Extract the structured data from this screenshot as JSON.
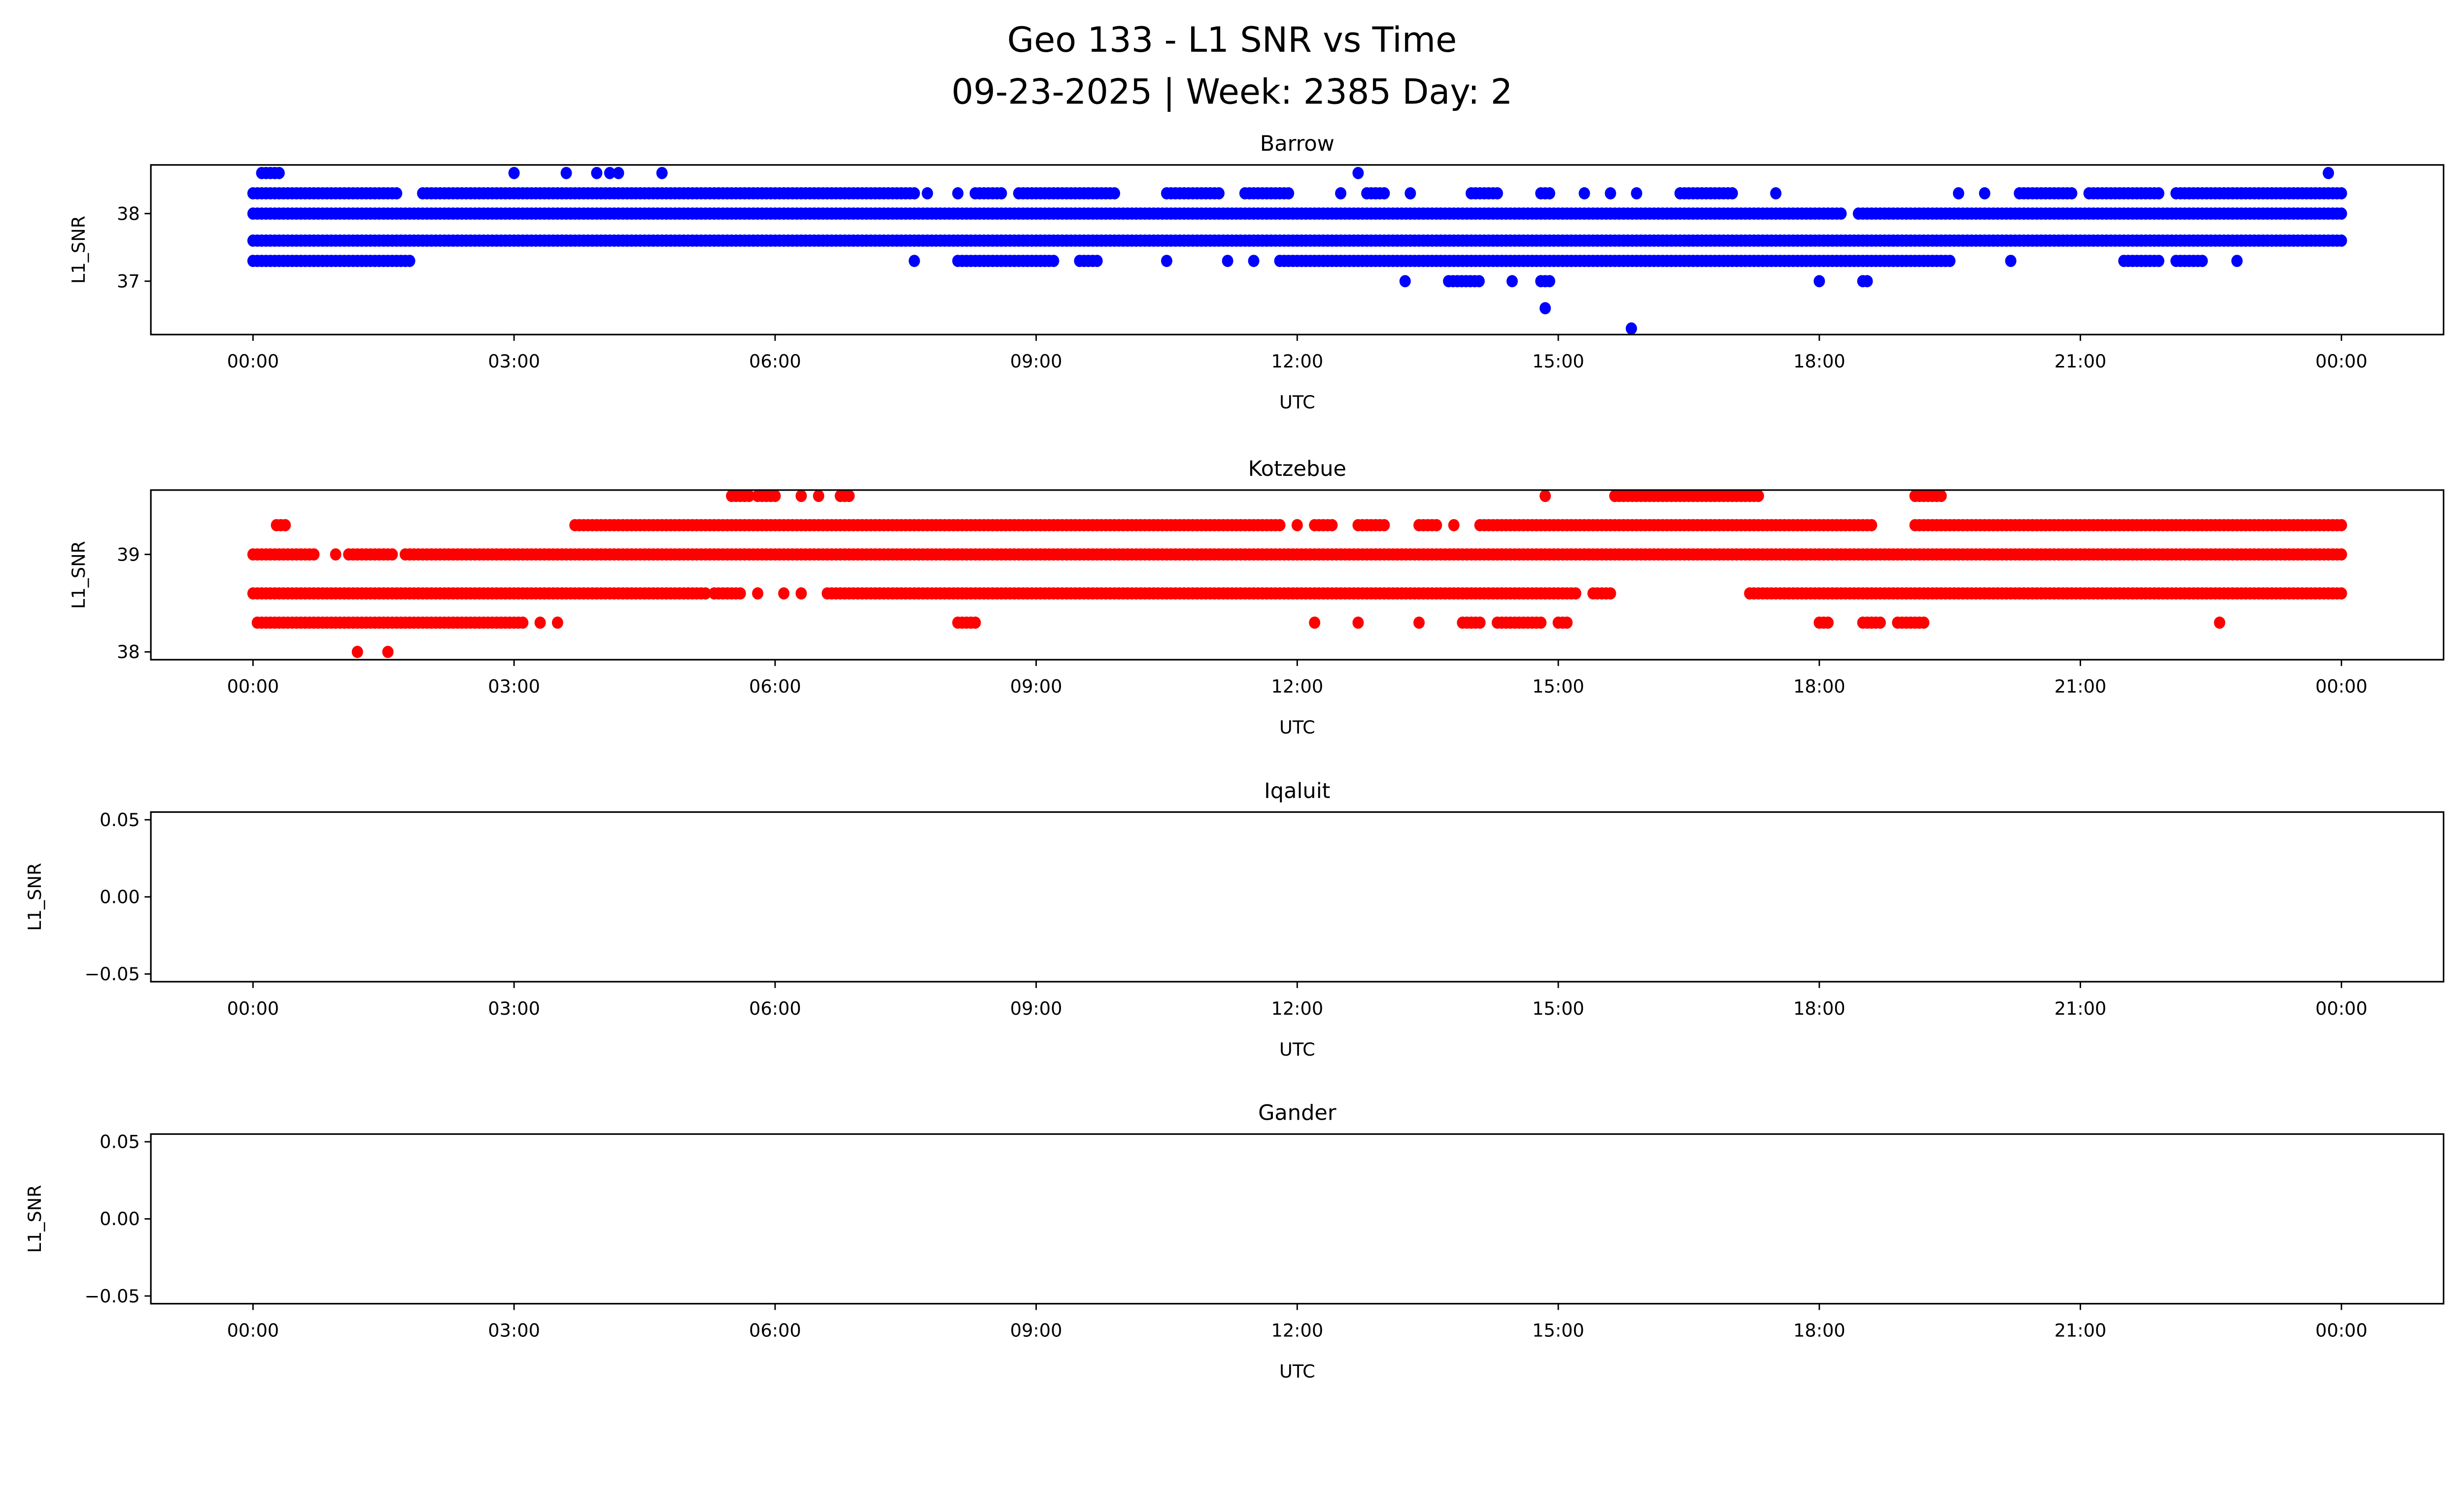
{
  "title_line1": "Geo 133 - L1 SNR vs Time",
  "title_line2": "09-23-2025 | Week: 2385 Day: 2",
  "chart_data": [
    {
      "type": "scatter",
      "title": "Barrow",
      "xlabel": "UTC",
      "ylabel": "L1_SNR",
      "color": "#0000ff",
      "xlim_hours": [
        -1.2,
        25.2
      ],
      "xticks": [
        "00:00",
        "03:00",
        "06:00",
        "09:00",
        "12:00",
        "15:00",
        "18:00",
        "21:00",
        "00:00"
      ],
      "ylim": [
        36.21,
        38.72
      ],
      "yticks": [
        37,
        38
      ],
      "ytick_labels": [
        "37",
        "38"
      ],
      "series": [
        {
          "y": 38.6,
          "runs": [
            [
              0.1,
              0.3
            ]
          ],
          "points": [
            3.0,
            3.6,
            3.95,
            4.1,
            4.2,
            4.7,
            12.7,
            23.85
          ]
        },
        {
          "y": 38.3,
          "runs": [
            [
              0,
              1.6
            ],
            [
              1.95,
              7.6
            ],
            [
              8.3,
              8.6
            ],
            [
              8.8,
              9.9
            ],
            [
              10.5,
              11.1
            ],
            [
              11.4,
              11.9
            ],
            [
              12.8,
              13.0
            ],
            [
              14.0,
              14.3
            ],
            [
              14.8,
              14.9
            ],
            [
              16.4,
              17.0
            ],
            [
              20.3,
              20.9
            ],
            [
              21.1,
              21.9
            ],
            [
              22.1,
              24
            ]
          ],
          "points": [
            1.65,
            7.75,
            8.1,
            12.5,
            13.3,
            15.3,
            15.6,
            15.9,
            17.5,
            19.6,
            19.9
          ]
        },
        {
          "y": 38.0,
          "runs": [
            [
              0,
              18.25
            ],
            [
              18.45,
              24
            ]
          ],
          "points": []
        },
        {
          "y": 37.6,
          "runs": [
            [
              0,
              24
            ]
          ],
          "points": []
        },
        {
          "y": 37.3,
          "runs": [
            [
              0,
              1.8
            ],
            [
              8.1,
              9.2
            ],
            [
              9.5,
              9.7
            ],
            [
              11.8,
              19.5
            ],
            [
              21.5,
              21.9
            ],
            [
              22.1,
              22.4
            ]
          ],
          "points": [
            7.6,
            10.5,
            11.2,
            11.5,
            20.2,
            22.8
          ]
        },
        {
          "y": 37.0,
          "runs": [
            [
              13.74,
              14.12
            ],
            [
              14.8,
              14.9
            ],
            [
              18.5,
              18.55
            ]
          ],
          "points": [
            13.24,
            14.47,
            18.0
          ]
        },
        {
          "y": 36.6,
          "runs": [],
          "points": [
            14.85
          ]
        },
        {
          "y": 36.3,
          "runs": [],
          "points": [
            15.84
          ]
        }
      ]
    },
    {
      "type": "scatter",
      "title": "Kotzebue",
      "xlabel": "UTC",
      "ylabel": "L1_SNR",
      "color": "#ff0000",
      "xlim_hours": [
        -1.2,
        25.2
      ],
      "xticks": [
        "00:00",
        "03:00",
        "06:00",
        "09:00",
        "12:00",
        "15:00",
        "18:00",
        "21:00",
        "00:00"
      ],
      "ylim": [
        37.92,
        39.66
      ],
      "yticks": [
        38,
        39
      ],
      "ytick_labels": [
        "38",
        "39"
      ],
      "series": [
        {
          "y": 39.6,
          "runs": [
            [
              5.5,
              5.7
            ],
            [
              5.8,
              6.0
            ],
            [
              6.75,
              6.85
            ],
            [
              15.65,
              17.3
            ],
            [
              19.1,
              19.4
            ]
          ],
          "points": [
            6.3,
            6.5,
            14.85
          ]
        },
        {
          "y": 39.3,
          "runs": [
            [
              0.27,
              0.4
            ],
            [
              3.7,
              11.8
            ],
            [
              12.2,
              12.4
            ],
            [
              12.7,
              13.0
            ],
            [
              13.4,
              13.6
            ],
            [
              14.1,
              18.6
            ],
            [
              19.1,
              24
            ]
          ],
          "points": [
            12.0,
            13.8
          ]
        },
        {
          "y": 39.0,
          "runs": [
            [
              0,
              0.7
            ],
            [
              1.1,
              1.6
            ],
            [
              1.75,
              24
            ]
          ],
          "points": [
            0.95
          ]
        },
        {
          "y": 38.6,
          "runs": [
            [
              0,
              5.2
            ],
            [
              5.3,
              5.6
            ],
            [
              6.6,
              15.2
            ],
            [
              15.4,
              15.6
            ],
            [
              17.2,
              24
            ]
          ],
          "points": [
            5.8,
            6.1,
            6.3
          ]
        },
        {
          "y": 38.3,
          "runs": [
            [
              0.05,
              3.1
            ],
            [
              8.1,
              8.3
            ],
            [
              13.9,
              14.1
            ],
            [
              14.3,
              14.8
            ],
            [
              15.0,
              15.1
            ],
            [
              18.0,
              18.1
            ],
            [
              18.5,
              18.7
            ],
            [
              18.9,
              19.2
            ]
          ],
          "points": [
            3.3,
            3.5,
            12.2,
            12.7,
            13.4,
            22.6
          ]
        },
        {
          "y": 38.0,
          "runs": [],
          "points": [
            1.2,
            1.55
          ]
        }
      ]
    },
    {
      "type": "scatter",
      "title": "Iqaluit",
      "xlabel": "UTC",
      "ylabel": "L1_SNR",
      "xlim_hours": [
        -1.2,
        25.2
      ],
      "xticks": [
        "00:00",
        "03:00",
        "06:00",
        "09:00",
        "12:00",
        "15:00",
        "18:00",
        "21:00",
        "00:00"
      ],
      "ylim": [
        -0.055,
        0.055
      ],
      "yticks": [
        -0.05,
        0.0,
        0.05
      ],
      "ytick_labels": [
        "−0.05",
        "0.00",
        "0.05"
      ],
      "series": []
    },
    {
      "type": "scatter",
      "title": "Gander",
      "xlabel": "UTC",
      "ylabel": "L1_SNR",
      "xlim_hours": [
        -1.2,
        25.2
      ],
      "xticks": [
        "00:00",
        "03:00",
        "06:00",
        "09:00",
        "12:00",
        "15:00",
        "18:00",
        "21:00",
        "00:00"
      ],
      "ylim": [
        -0.055,
        0.055
      ],
      "yticks": [
        -0.05,
        0.0,
        0.05
      ],
      "ytick_labels": [
        "−0.05",
        "0.00",
        "0.05"
      ],
      "series": []
    }
  ]
}
